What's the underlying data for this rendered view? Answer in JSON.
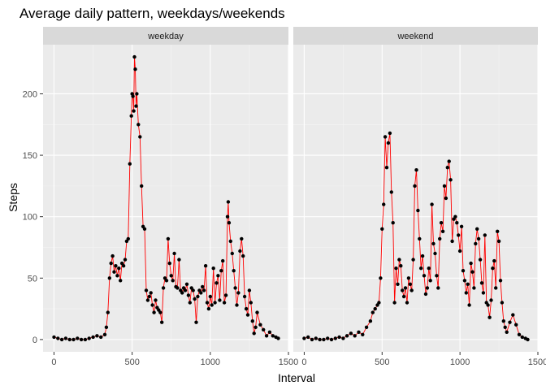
{
  "chart_data": {
    "type": "scatter",
    "title": "Average daily pattern, weekdays/weekends",
    "xlabel": "Interval",
    "ylabel": "Steps",
    "xlim": [
      -70,
      1500
    ],
    "ylim": [
      -10,
      240
    ],
    "x_ticks": [
      0,
      500,
      1000,
      1500
    ],
    "y_ticks": [
      0,
      50,
      100,
      150,
      200
    ],
    "x_tick_labels": [
      "0",
      "500",
      "1000",
      "1500"
    ],
    "y_tick_labels": [
      "0",
      "50",
      "100",
      "150",
      "200"
    ],
    "grid": true,
    "line_color": "#ff0000",
    "point_color": "#000000",
    "panel_background": "#ebebeb",
    "strip_background": "#d9d9d9",
    "panels": [
      {
        "label": "weekday",
        "x": [
          0,
          25,
          50,
          75,
          100,
          125,
          150,
          175,
          200,
          225,
          250,
          275,
          300,
          325,
          335,
          345,
          355,
          365,
          375,
          385,
          395,
          405,
          415,
          425,
          435,
          445,
          455,
          465,
          475,
          485,
          495,
          500,
          505,
          510,
          515,
          520,
          525,
          530,
          540,
          550,
          560,
          570,
          580,
          590,
          600,
          610,
          620,
          630,
          640,
          650,
          660,
          670,
          680,
          690,
          700,
          710,
          720,
          730,
          740,
          750,
          760,
          770,
          780,
          790,
          800,
          810,
          820,
          830,
          840,
          850,
          860,
          870,
          880,
          890,
          900,
          910,
          920,
          930,
          940,
          950,
          960,
          970,
          980,
          990,
          1000,
          1010,
          1020,
          1030,
          1040,
          1050,
          1060,
          1070,
          1080,
          1090,
          1100,
          1110,
          1115,
          1120,
          1130,
          1140,
          1150,
          1160,
          1170,
          1180,
          1190,
          1200,
          1210,
          1220,
          1230,
          1240,
          1250,
          1260,
          1270,
          1280,
          1290,
          1300,
          1320,
          1340,
          1360,
          1380,
          1400,
          1420,
          1435
        ],
        "y": [
          2,
          1,
          0,
          1,
          0,
          0,
          1,
          0,
          0,
          1,
          2,
          3,
          2,
          4,
          10,
          22,
          50,
          62,
          68,
          55,
          60,
          52,
          58,
          48,
          62,
          60,
          65,
          80,
          82,
          143,
          182,
          200,
          198,
          186,
          230,
          220,
          190,
          200,
          175,
          165,
          125,
          92,
          90,
          40,
          32,
          35,
          38,
          28,
          22,
          32,
          26,
          24,
          22,
          14,
          42,
          50,
          48,
          82,
          62,
          52,
          48,
          70,
          43,
          42,
          65,
          40,
          38,
          42,
          40,
          45,
          36,
          30,
          42,
          40,
          33,
          14,
          35,
          40,
          38,
          43,
          40,
          60,
          30,
          25,
          35,
          28,
          58,
          30,
          46,
          52,
          32,
          56,
          64,
          30,
          36,
          100,
          112,
          95,
          80,
          70,
          56,
          42,
          28,
          38,
          72,
          82,
          68,
          35,
          25,
          20,
          40,
          30,
          15,
          5,
          10,
          22,
          12,
          8,
          3,
          6,
          3,
          2,
          1
        ]
      },
      {
        "label": "weekend",
        "x": [
          0,
          25,
          50,
          75,
          100,
          125,
          150,
          175,
          200,
          225,
          250,
          275,
          300,
          325,
          350,
          375,
          400,
          425,
          440,
          455,
          470,
          480,
          490,
          500,
          510,
          520,
          530,
          540,
          550,
          560,
          570,
          580,
          590,
          600,
          610,
          620,
          630,
          640,
          650,
          660,
          670,
          680,
          690,
          700,
          710,
          720,
          730,
          740,
          750,
          760,
          770,
          780,
          790,
          800,
          810,
          820,
          830,
          840,
          850,
          860,
          870,
          880,
          890,
          900,
          910,
          920,
          930,
          940,
          950,
          960,
          970,
          980,
          990,
          1000,
          1010,
          1020,
          1030,
          1040,
          1050,
          1060,
          1070,
          1080,
          1090,
          1100,
          1110,
          1120,
          1130,
          1140,
          1150,
          1160,
          1170,
          1180,
          1190,
          1200,
          1210,
          1220,
          1230,
          1240,
          1250,
          1260,
          1270,
          1280,
          1290,
          1300,
          1320,
          1340,
          1360,
          1380,
          1400,
          1420,
          1435
        ],
        "y": [
          1,
          2,
          0,
          1,
          0,
          0,
          1,
          0,
          1,
          2,
          1,
          3,
          5,
          3,
          6,
          4,
          10,
          15,
          22,
          25,
          28,
          30,
          50,
          90,
          110,
          165,
          140,
          160,
          168,
          120,
          95,
          30,
          58,
          45,
          65,
          60,
          40,
          35,
          42,
          30,
          50,
          45,
          40,
          65,
          125,
          138,
          105,
          82,
          58,
          68,
          52,
          37,
          42,
          58,
          48,
          110,
          78,
          70,
          52,
          42,
          82,
          95,
          88,
          125,
          115,
          140,
          145,
          130,
          80,
          98,
          100,
          95,
          85,
          72,
          92,
          56,
          48,
          38,
          45,
          28,
          62,
          55,
          42,
          78,
          90,
          82,
          65,
          46,
          38,
          85,
          30,
          28,
          18,
          32,
          58,
          64,
          42,
          88,
          80,
          48,
          30,
          15,
          10,
          6,
          14,
          20,
          12,
          4,
          2,
          1,
          0
        ]
      }
    ]
  }
}
